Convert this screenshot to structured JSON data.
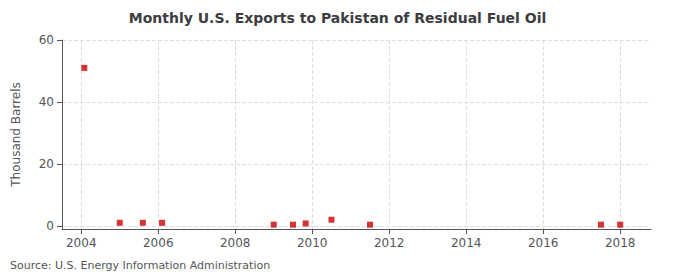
{
  "chart_data": {
    "type": "scatter",
    "title": "Monthly U.S. Exports to Pakistan of Residual Fuel Oil",
    "ylabel": "Thousand Barrels",
    "annotations": [
      "Source: U.S. Energy Information Administration"
    ],
    "x": [
      2004.08,
      2005.0,
      2005.6,
      2006.1,
      2009.0,
      2009.5,
      2009.83,
      2010.5,
      2011.5,
      2017.5,
      2018.0
    ],
    "values": [
      51,
      1,
      1,
      1,
      0.4,
      0.4,
      0.8,
      2,
      0.4,
      0.4,
      0.4
    ],
    "color": "#cc0000",
    "marker": "square",
    "xlim": [
      2003.5,
      2018.8
    ],
    "xticks": [
      2004,
      2006,
      2008,
      2010,
      2012,
      2014,
      2016,
      2018
    ],
    "ylim": [
      -1,
      60
    ],
    "yticks": [
      0,
      20,
      40,
      60
    ],
    "grid": true
  }
}
